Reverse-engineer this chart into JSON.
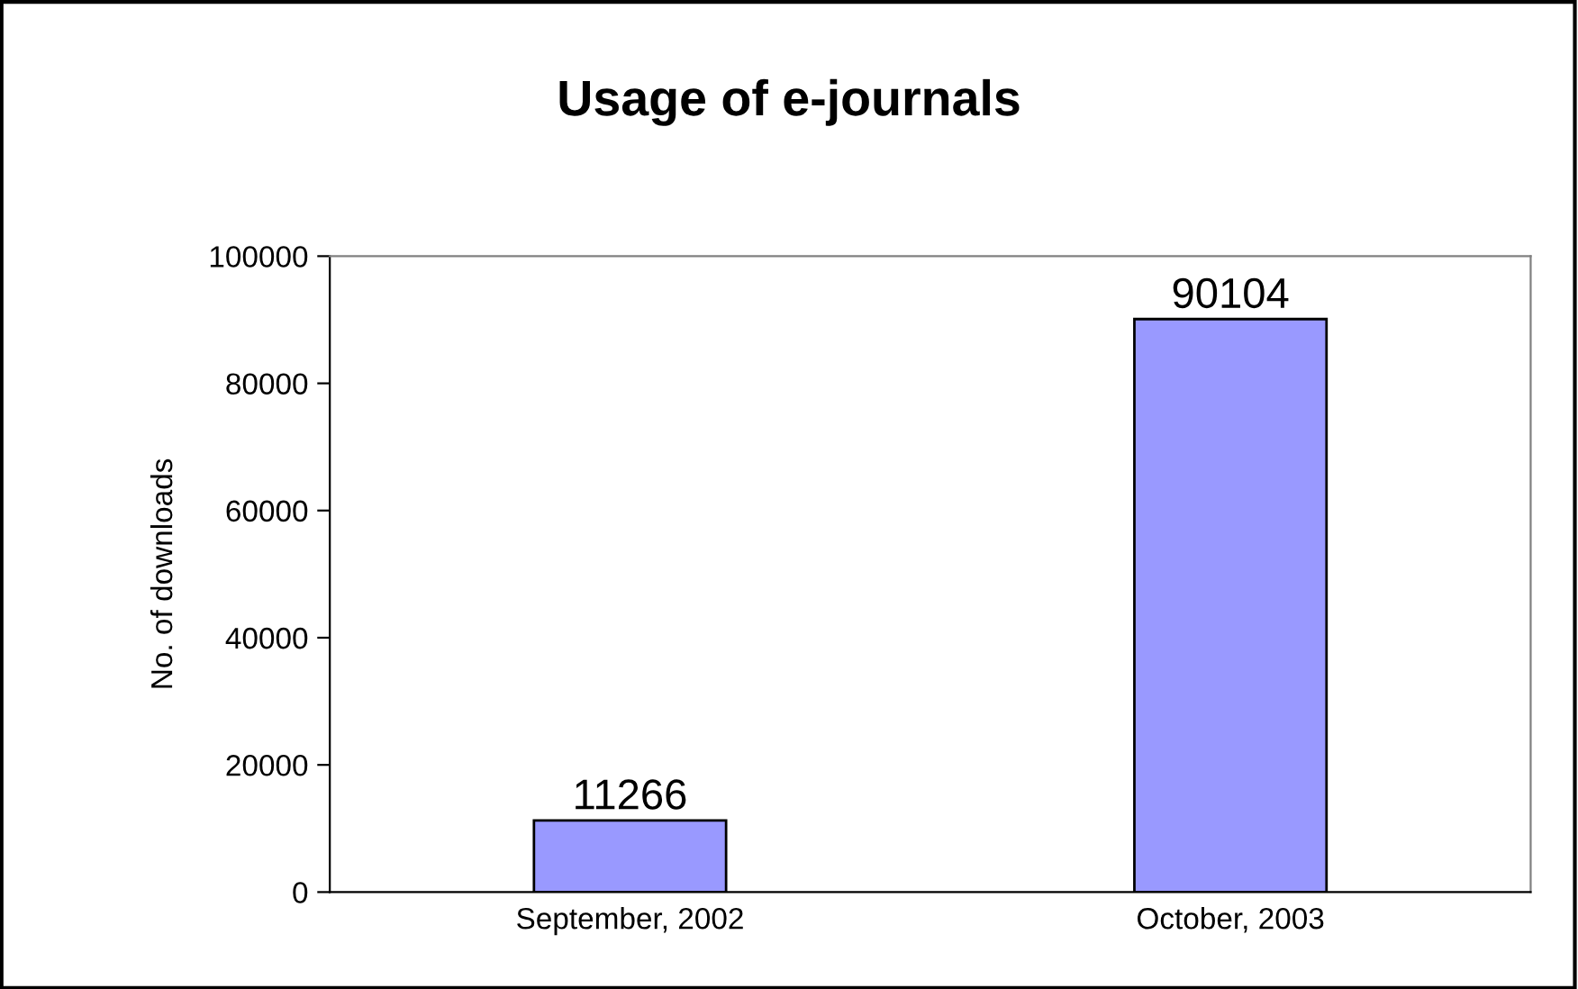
{
  "chart_data": {
    "type": "bar",
    "title": "Usage of e-journals",
    "ylabel": "No. of downloads",
    "categories": [
      "September, 2002",
      "October, 2003"
    ],
    "values": [
      11266,
      90104
    ],
    "color": "#9999ff",
    "ylim": [
      0,
      100000
    ],
    "yticks": [
      0,
      20000,
      40000,
      60000,
      80000,
      100000
    ],
    "data_labels": true,
    "grid": false,
    "legend": false
  }
}
